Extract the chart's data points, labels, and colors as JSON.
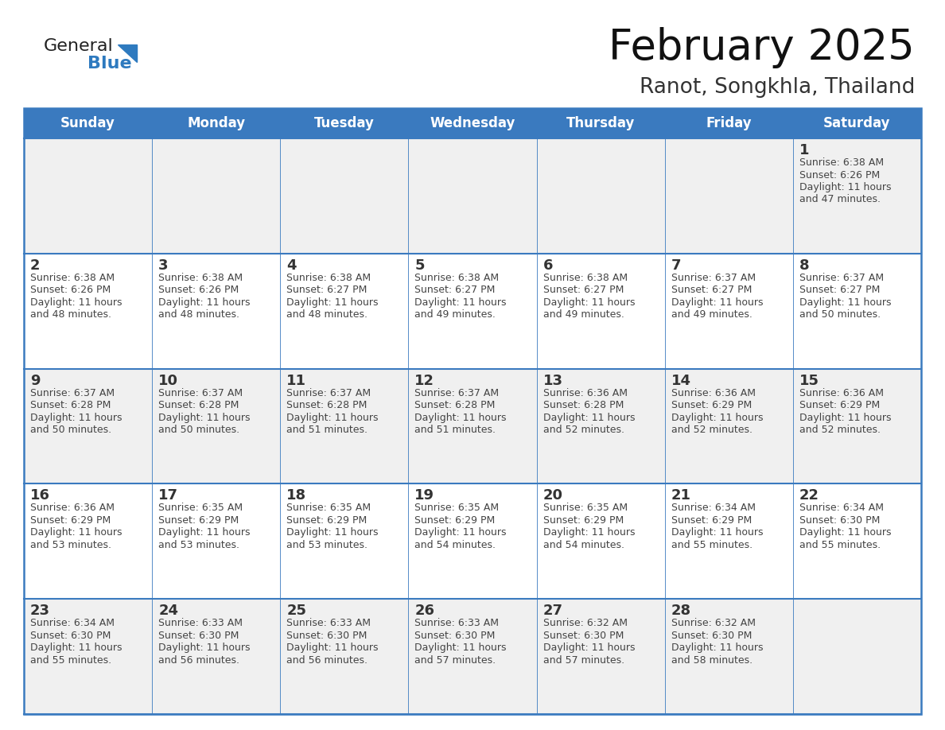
{
  "title": "February 2025",
  "subtitle": "Ranot, Songkhla, Thailand",
  "days_of_week": [
    "Sunday",
    "Monday",
    "Tuesday",
    "Wednesday",
    "Thursday",
    "Friday",
    "Saturday"
  ],
  "header_bg": "#3a7abf",
  "header_text": "#ffffff",
  "row_bg_light": "#f0f0f0",
  "row_bg_white": "#ffffff",
  "border_color": "#3a7abf",
  "text_color": "#444444",
  "day_number_color": "#333333",
  "title_color": "#111111",
  "subtitle_color": "#333333",
  "logo_general_color": "#222222",
  "logo_blue_color": "#2e7abf",
  "logo_triangle_color": "#2e7abf",
  "calendar_data": [
    [
      null,
      null,
      null,
      null,
      null,
      null,
      {
        "day": 1,
        "sunrise": "6:38 AM",
        "sunset": "6:26 PM",
        "daylight": "11 hours and 47 minutes."
      }
    ],
    [
      {
        "day": 2,
        "sunrise": "6:38 AM",
        "sunset": "6:26 PM",
        "daylight": "11 hours and 48 minutes."
      },
      {
        "day": 3,
        "sunrise": "6:38 AM",
        "sunset": "6:26 PM",
        "daylight": "11 hours and 48 minutes."
      },
      {
        "day": 4,
        "sunrise": "6:38 AM",
        "sunset": "6:27 PM",
        "daylight": "11 hours and 48 minutes."
      },
      {
        "day": 5,
        "sunrise": "6:38 AM",
        "sunset": "6:27 PM",
        "daylight": "11 hours and 49 minutes."
      },
      {
        "day": 6,
        "sunrise": "6:38 AM",
        "sunset": "6:27 PM",
        "daylight": "11 hours and 49 minutes."
      },
      {
        "day": 7,
        "sunrise": "6:37 AM",
        "sunset": "6:27 PM",
        "daylight": "11 hours and 49 minutes."
      },
      {
        "day": 8,
        "sunrise": "6:37 AM",
        "sunset": "6:27 PM",
        "daylight": "11 hours and 50 minutes."
      }
    ],
    [
      {
        "day": 9,
        "sunrise": "6:37 AM",
        "sunset": "6:28 PM",
        "daylight": "11 hours and 50 minutes."
      },
      {
        "day": 10,
        "sunrise": "6:37 AM",
        "sunset": "6:28 PM",
        "daylight": "11 hours and 50 minutes."
      },
      {
        "day": 11,
        "sunrise": "6:37 AM",
        "sunset": "6:28 PM",
        "daylight": "11 hours and 51 minutes."
      },
      {
        "day": 12,
        "sunrise": "6:37 AM",
        "sunset": "6:28 PM",
        "daylight": "11 hours and 51 minutes."
      },
      {
        "day": 13,
        "sunrise": "6:36 AM",
        "sunset": "6:28 PM",
        "daylight": "11 hours and 52 minutes."
      },
      {
        "day": 14,
        "sunrise": "6:36 AM",
        "sunset": "6:29 PM",
        "daylight": "11 hours and 52 minutes."
      },
      {
        "day": 15,
        "sunrise": "6:36 AM",
        "sunset": "6:29 PM",
        "daylight": "11 hours and 52 minutes."
      }
    ],
    [
      {
        "day": 16,
        "sunrise": "6:36 AM",
        "sunset": "6:29 PM",
        "daylight": "11 hours and 53 minutes."
      },
      {
        "day": 17,
        "sunrise": "6:35 AM",
        "sunset": "6:29 PM",
        "daylight": "11 hours and 53 minutes."
      },
      {
        "day": 18,
        "sunrise": "6:35 AM",
        "sunset": "6:29 PM",
        "daylight": "11 hours and 53 minutes."
      },
      {
        "day": 19,
        "sunrise": "6:35 AM",
        "sunset": "6:29 PM",
        "daylight": "11 hours and 54 minutes."
      },
      {
        "day": 20,
        "sunrise": "6:35 AM",
        "sunset": "6:29 PM",
        "daylight": "11 hours and 54 minutes."
      },
      {
        "day": 21,
        "sunrise": "6:34 AM",
        "sunset": "6:29 PM",
        "daylight": "11 hours and 55 minutes."
      },
      {
        "day": 22,
        "sunrise": "6:34 AM",
        "sunset": "6:30 PM",
        "daylight": "11 hours and 55 minutes."
      }
    ],
    [
      {
        "day": 23,
        "sunrise": "6:34 AM",
        "sunset": "6:30 PM",
        "daylight": "11 hours and 55 minutes."
      },
      {
        "day": 24,
        "sunrise": "6:33 AM",
        "sunset": "6:30 PM",
        "daylight": "11 hours and 56 minutes."
      },
      {
        "day": 25,
        "sunrise": "6:33 AM",
        "sunset": "6:30 PM",
        "daylight": "11 hours and 56 minutes."
      },
      {
        "day": 26,
        "sunrise": "6:33 AM",
        "sunset": "6:30 PM",
        "daylight": "11 hours and 57 minutes."
      },
      {
        "day": 27,
        "sunrise": "6:32 AM",
        "sunset": "6:30 PM",
        "daylight": "11 hours and 57 minutes."
      },
      {
        "day": 28,
        "sunrise": "6:32 AM",
        "sunset": "6:30 PM",
        "daylight": "11 hours and 58 minutes."
      },
      null
    ]
  ]
}
